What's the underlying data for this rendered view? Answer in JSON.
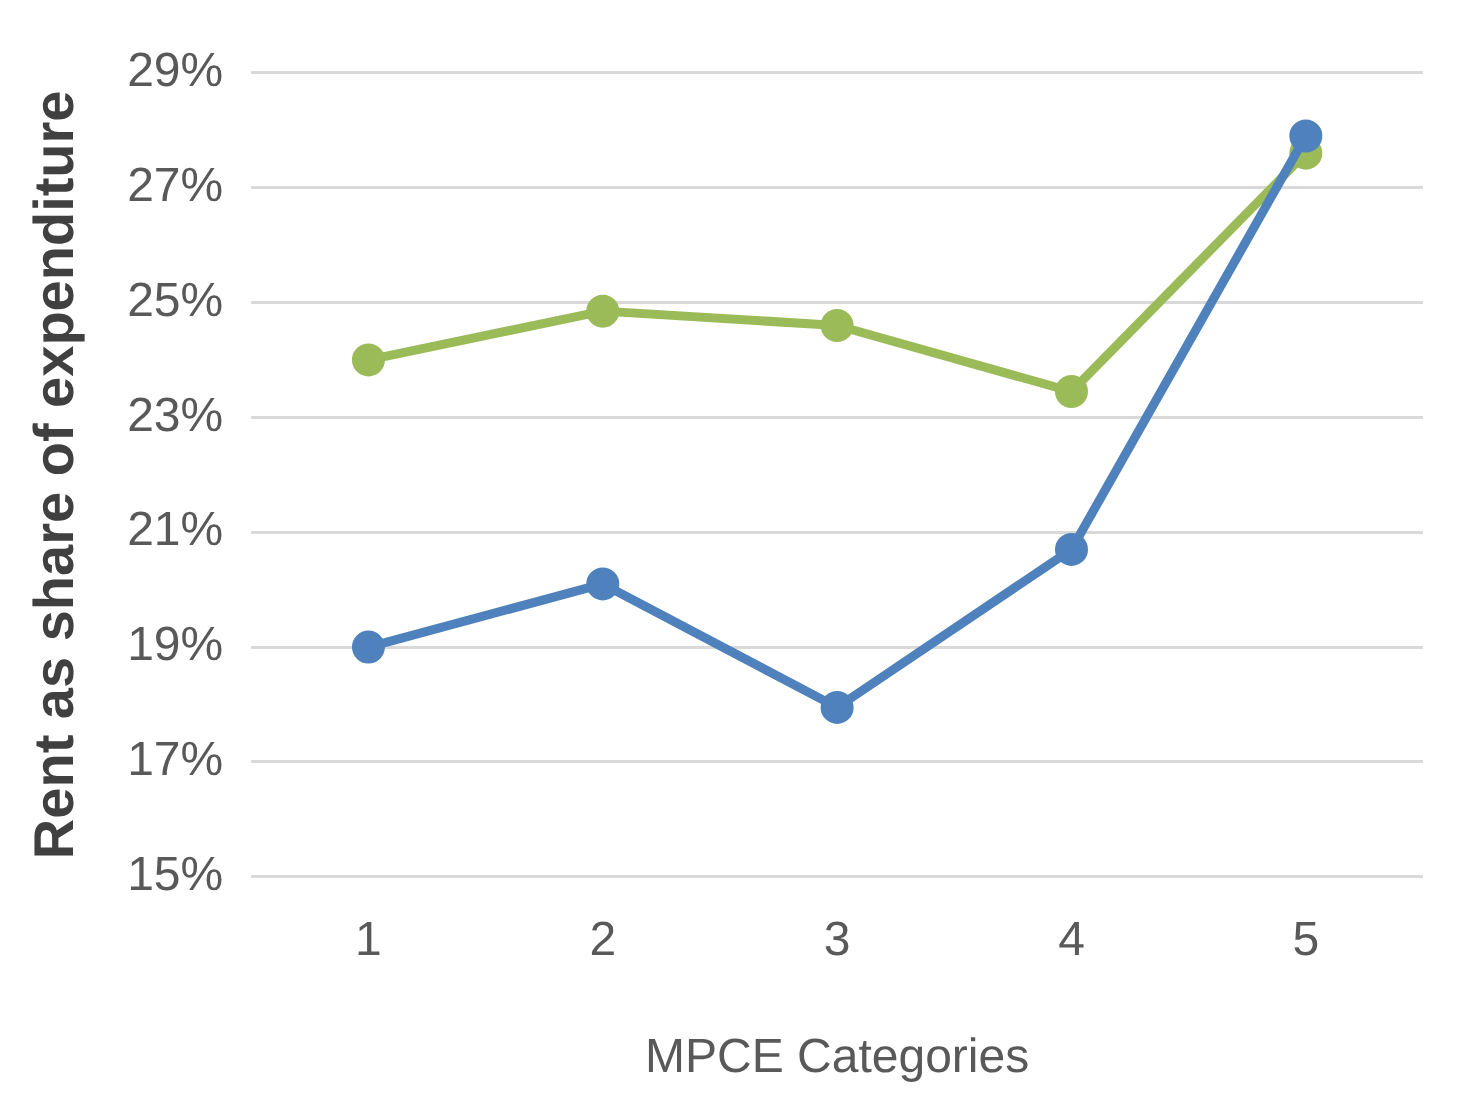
{
  "chart_data": {
    "type": "line",
    "xlabel": "MPCE Categories",
    "ylabel": "Rent as share of expenditure",
    "categories": [
      "1",
      "2",
      "3",
      "4",
      "5"
    ],
    "series": [
      {
        "color": "#4f81bd",
        "values": [
          19.0,
          20.1,
          17.95,
          20.7,
          27.9
        ]
      },
      {
        "color": "#9bbb59",
        "values": [
          24.0,
          24.85,
          24.6,
          23.45,
          27.6
        ]
      }
    ],
    "ylim": [
      15,
      29
    ],
    "yticks": [
      {
        "value": 15,
        "label": "15%"
      },
      {
        "value": 17,
        "label": "17%"
      },
      {
        "value": 19,
        "label": "19%"
      },
      {
        "value": 21,
        "label": "21%"
      },
      {
        "value": 23,
        "label": "23%"
      },
      {
        "value": 25,
        "label": "25%"
      },
      {
        "value": 27,
        "label": "27%"
      },
      {
        "value": 29,
        "label": "29%"
      }
    ],
    "grid": "y",
    "legend": false,
    "marker": "circle",
    "line_style": "solid"
  }
}
